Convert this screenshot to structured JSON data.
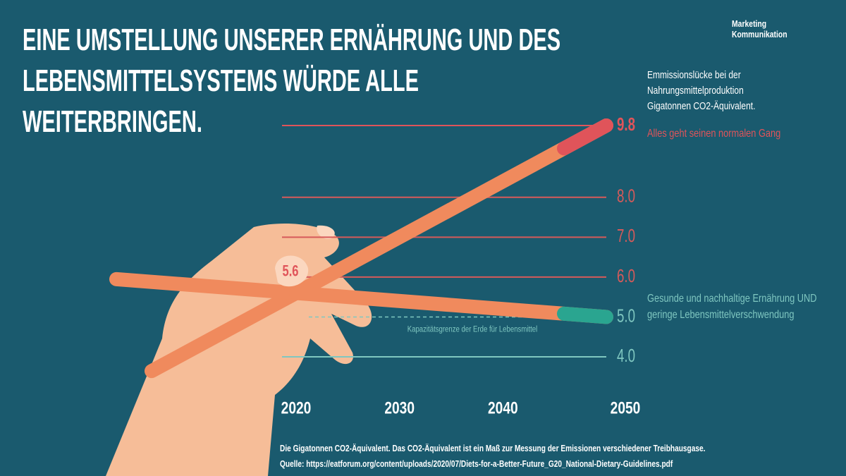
{
  "chart_data": {
    "type": "line",
    "title": "EINE UMSTELLUNG UNSERER ERNÄHRUNG UND DES LEBENSMITTELSYSTEMS WÜRDE ALLE WEITERBRINGEN.",
    "brand": "Marketing Kommunikation",
    "subtitle": "Emmissionslücke bei der Nahrungsmittelproduktion Gigatonnen CO2-Äquivalent.",
    "x": [
      2020,
      2050
    ],
    "xlim": [
      2020,
      2050
    ],
    "xticks": [
      2020,
      2030,
      2040,
      2050
    ],
    "ylim": [
      4,
      9.8
    ],
    "yticks": [
      {
        "value": 4,
        "label": "4.0",
        "color": "#7fc7c0"
      },
      {
        "value": 5,
        "label": "5.0",
        "color": "#7fc7c0"
      },
      {
        "value": 6,
        "label": "6.0",
        "color": "#d65a5a"
      },
      {
        "value": 7,
        "label": "7.0",
        "color": "#d65a5a"
      },
      {
        "value": 8,
        "label": "8.0",
        "color": "#d65a5a"
      },
      {
        "value": 9.8,
        "label": "9.8",
        "color": "#e0545a"
      }
    ],
    "series": [
      {
        "name": "Alles geht seinen normalen Gang",
        "color": "#e0545a",
        "values": [
          5.6,
          9.8
        ]
      },
      {
        "name": "Gesunde und nachhaltige Ernährung UND geringe Lebensmittelverschwendung",
        "color": "#2aa590",
        "values": [
          5.6,
          5.0
        ]
      }
    ],
    "capacity_limit": {
      "label": "Kapazitätsgrenze der Erde für Lebensmittel",
      "value": 5.0
    },
    "footnote": "Die Gigatonnen CO2-Äquivalent. Das CO2-Äquivalent ist ein Maß zur Messung der Emissionen verschiedener Treibhausgase.",
    "source": "Quelle:  https://eatforum.org/content/uploads/2020/07/Diets-for-a-Better-Future_G20_National-Dietary-Guidelines.pdf"
  }
}
